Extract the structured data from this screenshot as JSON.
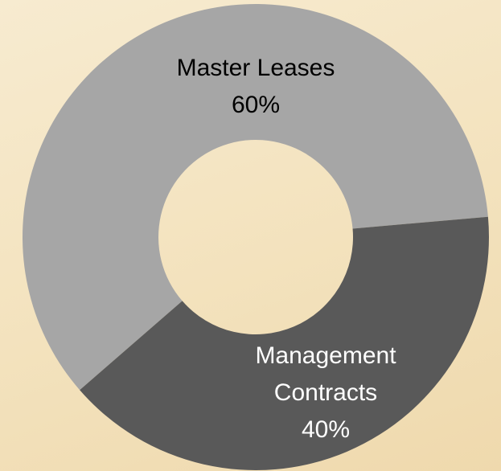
{
  "chart_data": {
    "type": "donut",
    "categories": [
      "Master Leases",
      "Management Contracts"
    ],
    "values": [
      60,
      40
    ],
    "value_labels": [
      "60%",
      "40%"
    ],
    "colors": [
      "#a6a6a6",
      "#595959"
    ]
  }
}
